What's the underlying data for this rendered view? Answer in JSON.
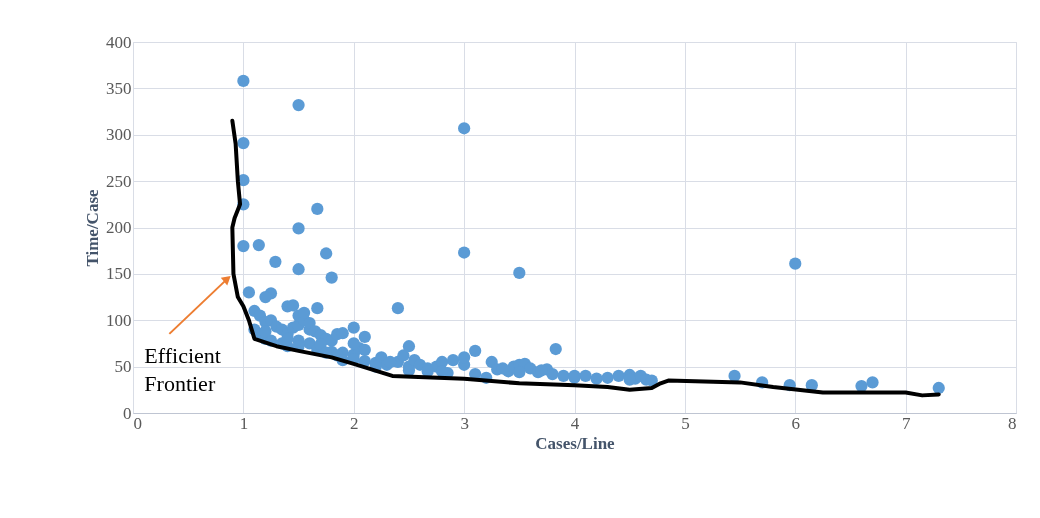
{
  "chart_data": {
    "type": "scatter",
    "xlabel": "Cases/Line",
    "ylabel": "Time/Case",
    "xlim": [
      0,
      8
    ],
    "xticks": [
      0,
      1,
      2,
      3,
      4,
      5,
      6,
      7,
      8
    ],
    "ylim": [
      0,
      400
    ],
    "yticks": [
      0,
      50,
      100,
      150,
      200,
      250,
      300,
      350,
      400
    ],
    "grid": true,
    "annotations": [
      {
        "text": "Efficient Frontier",
        "x": 0.9,
        "y": 150
      }
    ],
    "series": [
      {
        "marker": "circle",
        "color": "#5b9bd5",
        "x": [
          1.0,
          1.5,
          3.0,
          1.0,
          1.0,
          1.0,
          1.67,
          1.5,
          1.0,
          1.14,
          1.75,
          3.0,
          1.29,
          1.5,
          3.5,
          1.8,
          6.0,
          2.4,
          3.83,
          1.67,
          1.05,
          1.25,
          1.4,
          1.45,
          1.2,
          1.1,
          1.15,
          1.2,
          1.25,
          1.3,
          1.35,
          1.4,
          1.45,
          1.5,
          1.5,
          1.55,
          1.6,
          1.6,
          1.65,
          1.7,
          1.75,
          1.8,
          1.85,
          1.9,
          2.0,
          1.1,
          1.15,
          1.2,
          1.25,
          1.35,
          1.4,
          1.5,
          1.6,
          1.67,
          1.8,
          1.9,
          2.0,
          2.05,
          2.1,
          1.2,
          1.4,
          1.5,
          1.7,
          1.75,
          1.85,
          2.0,
          2.1,
          2.2,
          2.25,
          2.3,
          2.4,
          2.45,
          2.5,
          2.55,
          2.6,
          2.67,
          2.75,
          2.8,
          2.9,
          3.0,
          3.0,
          2.33,
          2.5,
          2.67,
          2.85,
          3.1,
          3.25,
          3.3,
          3.4,
          3.45,
          3.5,
          3.55,
          3.6,
          3.67,
          3.75,
          3.8,
          3.9,
          4.0,
          4.1,
          4.2,
          4.3,
          4.4,
          4.5,
          4.55,
          4.6,
          4.65,
          3.2,
          3.5,
          3.7,
          3.35,
          4.0,
          4.5,
          4.7,
          5.45,
          5.7,
          5.95,
          6.15,
          6.6,
          6.7,
          7.3,
          2.0,
          2.1,
          1.55,
          1.9,
          2.2,
          2.5,
          2.8,
          3.1
        ],
        "values": [
          358,
          332,
          307,
          291,
          251,
          225,
          220,
          199,
          180,
          181,
          172,
          173,
          163,
          155,
          151,
          146,
          161,
          113,
          69,
          113,
          130,
          129,
          115,
          116,
          125,
          110,
          105,
          98,
          100,
          93,
          90,
          85,
          92,
          95,
          105,
          100,
          90,
          97,
          88,
          84,
          80,
          78,
          85,
          86,
          92,
          90,
          85,
          80,
          78,
          75,
          72,
          78,
          75,
          68,
          66,
          65,
          63,
          70,
          82,
          88,
          80,
          72,
          74,
          65,
          62,
          58,
          56,
          54,
          60,
          52,
          55,
          62,
          50,
          57,
          52,
          48,
          50,
          55,
          57,
          52,
          60,
          55,
          46,
          45,
          43,
          67,
          55,
          47,
          45,
          50,
          52,
          53,
          48,
          44,
          47,
          42,
          40,
          38,
          40,
          37,
          38,
          40,
          41,
          37,
          40,
          36,
          38,
          44,
          46,
          48,
          40,
          36,
          35,
          40,
          33,
          30,
          30,
          29,
          33,
          27,
          75,
          68,
          108,
          57,
          50,
          72,
          45,
          42
        ]
      },
      {
        "type": "line",
        "marker": "none",
        "color": "#000000",
        "x": [
          0.9,
          0.93,
          0.95,
          0.97,
          0.92,
          0.9,
          0.91,
          0.95,
          1.0,
          1.05,
          1.1,
          1.3,
          1.5,
          1.8,
          2.0,
          2.35,
          3.0,
          3.5,
          4.0,
          4.3,
          4.5,
          4.7,
          4.78,
          4.85,
          5.5,
          5.8,
          6.25,
          7.0,
          7.15,
          7.3
        ],
        "values": [
          315,
          290,
          250,
          225,
          210,
          200,
          150,
          125,
          115,
          100,
          80,
          72,
          67,
          60,
          53,
          40,
          37,
          32,
          30,
          28,
          25,
          27,
          32,
          35,
          33,
          28,
          22,
          22,
          19,
          20
        ]
      }
    ]
  }
}
